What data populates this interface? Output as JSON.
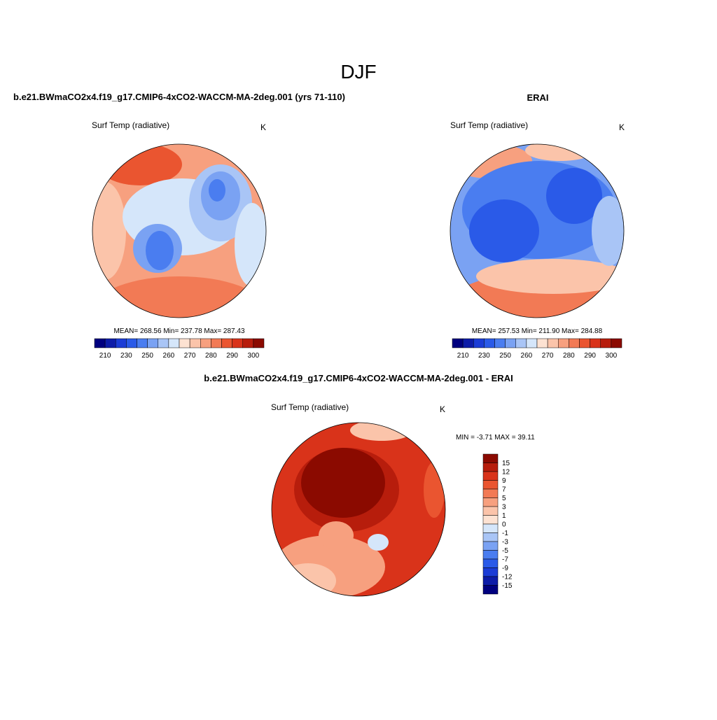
{
  "title": "DJF",
  "panels": [
    {
      "title": "b.e21.BWmaCO2x4.f19_g17.CMIP6-4xCO2-WACCM-MA-2deg.001 (yrs 71-110)",
      "left_label": "Surf Temp (radiative)",
      "right_label": "K",
      "stats": "MEAN= 268.56  Min= 237.78  Max= 287.43",
      "colorbar": {
        "labels": [
          210,
          230,
          250,
          260,
          270,
          280,
          290,
          300
        ]
      }
    },
    {
      "title": "ERAI",
      "left_label": "Surf Temp (radiative)",
      "right_label": "K",
      "stats": "MEAN= 257.53  Min= 211.90  Max= 284.88",
      "colorbar": {
        "labels": [
          210,
          230,
          250,
          260,
          270,
          280,
          290,
          300
        ]
      }
    },
    {
      "title": "b.e21.BWmaCO2x4.f19_g17.CMIP6-4xCO2-WACCM-MA-2deg.001 - ERAI",
      "left_label": "Surf Temp (radiative)",
      "right_label": "K",
      "stats": "MIN =  -3.71 MAX =  39.11",
      "colorbar": {
        "labels": [
          15,
          12,
          9,
          7,
          5,
          3,
          1,
          0,
          -1,
          -3,
          -5,
          -7,
          -9,
          -12,
          -15
        ]
      }
    }
  ],
  "colorbar_colors": [
    "#00007f",
    "#0d1ca8",
    "#1b3cd6",
    "#2a5ae8",
    "#4a7df0",
    "#7aa2f3",
    "#a9c5f6",
    "#d5e6fa",
    "#fde2d2",
    "#fbc4aa",
    "#f7a07f",
    "#f27a55",
    "#ea5530",
    "#d9331a",
    "#b71d0c",
    "#8b0a00"
  ]
}
